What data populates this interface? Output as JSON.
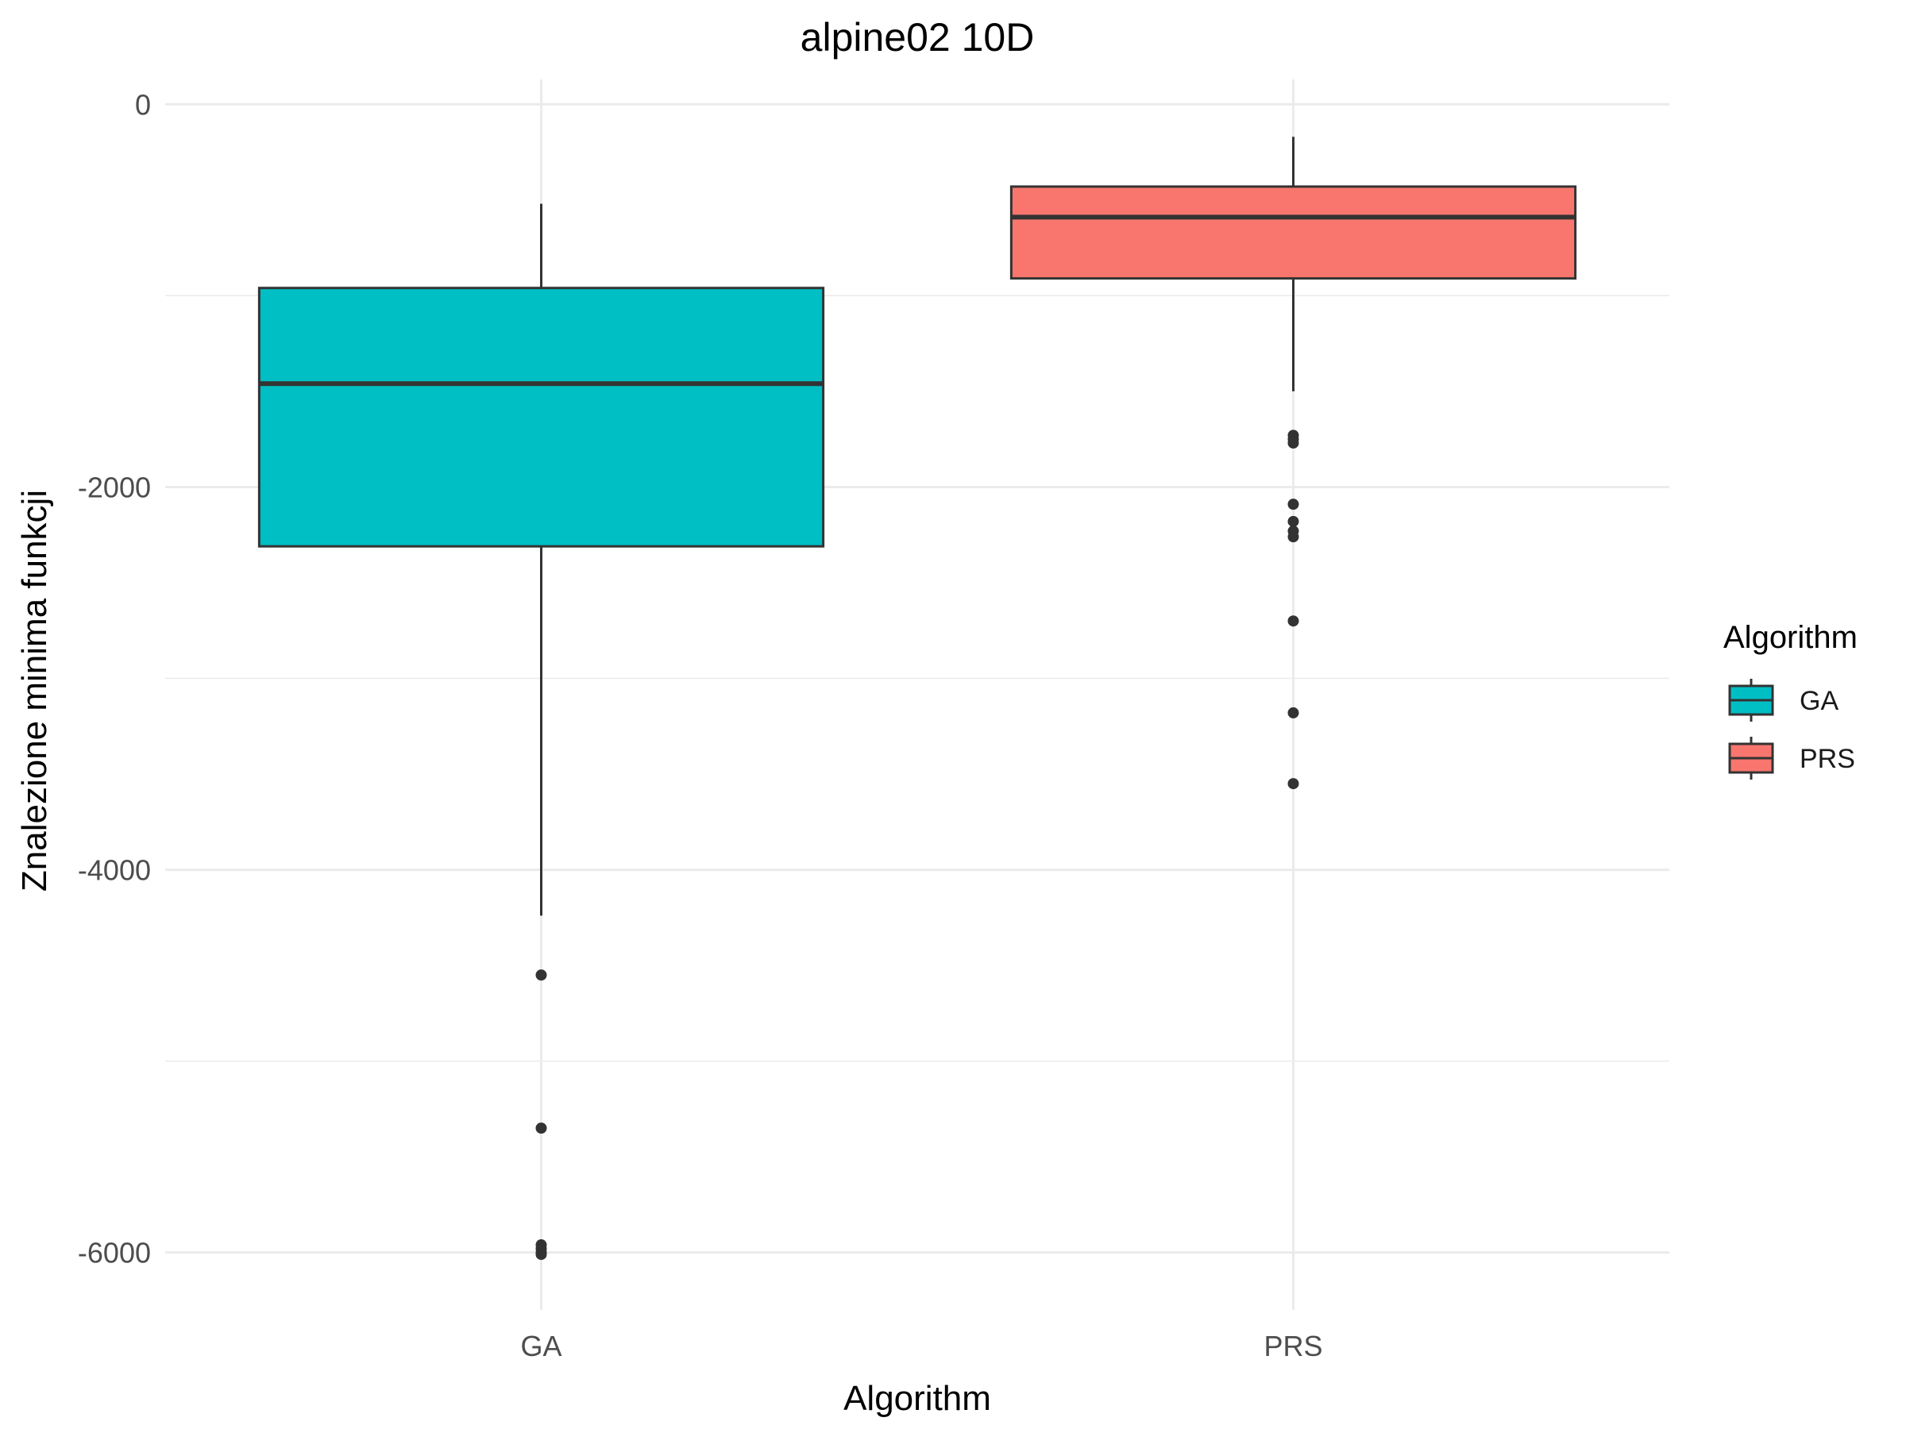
{
  "chart_data": {
    "type": "boxplot",
    "title": "alpine02 10D",
    "xlabel": "Algorithm",
    "ylabel": "Znalezione minima funkcji",
    "categories": [
      "GA",
      "PRS"
    ],
    "ylim": [
      -6300,
      130
    ],
    "y_ticks": [
      0,
      -2000,
      -4000,
      -6000
    ],
    "y_tick_labels": [
      "0",
      "-2000",
      "-4000",
      "-6000"
    ],
    "grid": true,
    "legend": {
      "title": "Algorithm",
      "placement": "right",
      "entries": [
        "GA",
        "PRS"
      ]
    },
    "colors": {
      "GA": "#00BFC4",
      "PRS": "#F8766D",
      "outline": "#333333",
      "grid": "#ebebeb"
    },
    "boxes": [
      {
        "name": "GA",
        "whisker_high": -520,
        "q3": -960,
        "median": -1460,
        "q1": -2310,
        "whisker_low": -4240,
        "outliers": [
          -4550,
          -5350,
          -5960,
          -5980,
          -6000,
          -6010
        ]
      },
      {
        "name": "PRS",
        "whisker_high": -170,
        "q3": -430,
        "median": -590,
        "q1": -910,
        "whisker_low": -1500,
        "outliers": [
          -1730,
          -1750,
          -1770,
          -2090,
          -2180,
          -2230,
          -2260,
          -2700,
          -3180,
          -3550
        ]
      }
    ]
  }
}
